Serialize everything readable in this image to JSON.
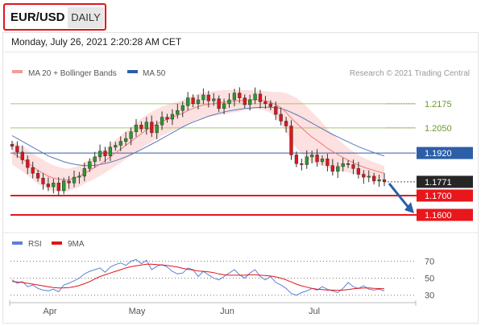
{
  "header": {
    "pair": "EUR/USD",
    "period": "DAILY"
  },
  "timestamp": "Monday, July 26, 2021 2:20:28 AM CET",
  "legend": {
    "ma20": "MA 20 + Bollinger Bands",
    "ma50": "MA 50",
    "credit": "Research © 2021 Trading Central",
    "rsi": "RSI",
    "rsi_ma": "9MA"
  },
  "colors": {
    "candle_up": "#2b9a2b",
    "candle_down": "#e0151b",
    "bollinger_fill": "#fde0e0",
    "ma20": "#f07a7a",
    "ma50": "#5878b4",
    "resistance": "#a3c86a",
    "current": "#2c5fa8",
    "support": "#e8171c",
    "last_price": "#262626",
    "rsi": "#5b7fd6",
    "rsi_ma": "#e0151b",
    "arrow": "#2c5fa8"
  },
  "chart_data": {
    "type": "candlestick",
    "title": "EUR/USD Daily",
    "x_ticks": [
      "Apr",
      "May",
      "Jun",
      "Jul"
    ],
    "price_levels": [
      {
        "label": "1.2175",
        "value": 1.2175,
        "kind": "resistance"
      },
      {
        "label": "1.2050",
        "value": 1.205,
        "kind": "resistance"
      },
      {
        "label": "1.1920",
        "value": 1.192,
        "kind": "pivot"
      },
      {
        "label": "1.1771",
        "value": 1.1771,
        "kind": "last"
      },
      {
        "label": "1.1700",
        "value": 1.17,
        "kind": "support"
      },
      {
        "label": "1.1600",
        "value": 1.16,
        "kind": "support"
      }
    ],
    "y_range": [
      1.1525,
      1.2295
    ],
    "forecast_arrow": {
      "from": 1.1771,
      "to": 1.16
    },
    "closes": [
      1.1955,
      1.1925,
      1.1885,
      1.1845,
      1.1815,
      1.179,
      1.176,
      1.1745,
      1.1765,
      1.1725,
      1.1775,
      1.1765,
      1.1795,
      1.18,
      1.184,
      1.1875,
      1.19,
      1.193,
      1.1905,
      1.195,
      1.196,
      1.198,
      1.1995,
      1.203,
      1.2065,
      1.2045,
      1.208,
      1.2025,
      1.2065,
      1.2105,
      1.2095,
      1.212,
      1.214,
      1.2165,
      1.2205,
      1.2175,
      1.2195,
      1.222,
      1.219,
      1.22,
      1.215,
      1.2175,
      1.2195,
      1.223,
      1.2205,
      1.217,
      1.2195,
      1.2225,
      1.2185,
      1.2175,
      1.216,
      1.212,
      1.2085,
      1.206,
      1.191,
      1.1865,
      1.186,
      1.19,
      1.191,
      1.1875,
      1.189,
      1.1855,
      1.1825,
      1.185,
      1.1865,
      1.186,
      1.184,
      1.181,
      1.1795,
      1.18,
      1.1775,
      1.1782,
      1.1771
    ],
    "ma20": [
      1.192,
      1.1905,
      1.189,
      1.187,
      1.185,
      1.183,
      1.1815,
      1.18,
      1.179,
      1.1785,
      1.178,
      1.1782,
      1.179,
      1.18,
      1.1815,
      1.183,
      1.1845,
      1.1862,
      1.188,
      1.19,
      1.192,
      1.194,
      1.196,
      1.198,
      1.2,
      1.202,
      1.204,
      1.2055,
      1.207,
      1.2085,
      1.2095,
      1.2105,
      1.2115,
      1.2125,
      1.214,
      1.215,
      1.216,
      1.2168,
      1.2172,
      1.2176,
      1.218,
      1.2183,
      1.2186,
      1.2189,
      1.2191,
      1.2193,
      1.2195,
      1.2196,
      1.2194,
      1.219,
      1.2182,
      1.217,
      1.2155,
      1.213,
      1.21,
      1.2075,
      1.205,
      1.2025,
      1.2003,
      1.1985,
      1.1965,
      1.1945,
      1.1928,
      1.1912,
      1.1897,
      1.1883,
      1.187,
      1.1858,
      1.1847,
      1.1838,
      1.183,
      1.1822,
      1.1815
    ],
    "ma50": [
      1.201,
      1.1995,
      1.198,
      1.1965,
      1.195,
      1.1935,
      1.192,
      1.1905,
      1.1895,
      1.1885,
      1.1875,
      1.1868,
      1.1862,
      1.1858,
      1.1855,
      1.1855,
      1.1857,
      1.186,
      1.1866,
      1.1873,
      1.188,
      1.189,
      1.19,
      1.1912,
      1.1925,
      1.1938,
      1.1952,
      1.1966,
      1.198,
      1.1995,
      1.201,
      1.2025,
      1.204,
      1.2055,
      1.2068,
      1.208,
      1.209,
      1.21,
      1.211,
      1.2118,
      1.2125,
      1.2132,
      1.2138,
      1.2142,
      1.2146,
      1.215,
      1.2152,
      1.2155,
      1.2156,
      1.2157,
      1.2157,
      1.2155,
      1.215,
      1.2142,
      1.213,
      1.2118,
      1.2105,
      1.209,
      1.2075,
      1.206,
      1.2045,
      1.203,
      1.2016,
      1.2003,
      1.199,
      1.1978,
      1.1965,
      1.1953,
      1.1942,
      1.1932,
      1.1922,
      1.1913,
      1.1905
    ],
    "bb_width": [
      0.006,
      0.0062,
      0.0064,
      0.0066,
      0.0068,
      0.007,
      0.007,
      0.0069,
      0.0067,
      0.0064,
      0.006,
      0.0058,
      0.0056,
      0.0055,
      0.0055,
      0.0056,
      0.0058,
      0.006,
      0.0062,
      0.0065,
      0.0068,
      0.007,
      0.0072,
      0.0074,
      0.0076,
      0.0077,
      0.0078,
      0.0078,
      0.0077,
      0.0076,
      0.0074,
      0.0072,
      0.007,
      0.0068,
      0.0067,
      0.0066,
      0.0065,
      0.0065,
      0.0064,
      0.0064,
      0.0063,
      0.0062,
      0.006,
      0.0058,
      0.0055,
      0.0052,
      0.005,
      0.0048,
      0.0048,
      0.005,
      0.0055,
      0.0065,
      0.008,
      0.01,
      0.0118,
      0.013,
      0.0135,
      0.0135,
      0.013,
      0.0122,
      0.0112,
      0.01,
      0.009,
      0.008,
      0.0072,
      0.0064,
      0.0058,
      0.0052,
      0.0048,
      0.0045,
      0.0042,
      0.004,
      0.0038
    ],
    "rsi": {
      "ticks": [
        70,
        50,
        30
      ],
      "y_range": [
        25,
        78
      ],
      "values": [
        48,
        44,
        46,
        40,
        42,
        38,
        36,
        35,
        37,
        34,
        42,
        44,
        47,
        50,
        55,
        58,
        60,
        62,
        57,
        63,
        66,
        68,
        65,
        70,
        72,
        67,
        71,
        60,
        64,
        66,
        63,
        58,
        55,
        56,
        62,
        60,
        52,
        58,
        54,
        50,
        48,
        52,
        56,
        60,
        54,
        50,
        56,
        60,
        52,
        48,
        52,
        45,
        42,
        38,
        32,
        30,
        33,
        35,
        38,
        36,
        40,
        37,
        35,
        33,
        38,
        45,
        40,
        38,
        41,
        37,
        36,
        37,
        35
      ],
      "ma_values": [
        46,
        45.5,
        45,
        44,
        43,
        42,
        41,
        40,
        39,
        38.5,
        38.6,
        39,
        40,
        41.5,
        43.5,
        46,
        49,
        52,
        54,
        56,
        58,
        60,
        62,
        63.5,
        64.5,
        65.5,
        66.5,
        66.5,
        66,
        65.5,
        65,
        64,
        63,
        61.5,
        60.5,
        59.5,
        58.5,
        58,
        57.5,
        56.5,
        55,
        54,
        53.5,
        53.5,
        53.5,
        53.5,
        54,
        54,
        53.5,
        53,
        52.5,
        51.5,
        50,
        48,
        45.5,
        43,
        41,
        39.5,
        38,
        37,
        36.5,
        36,
        36,
        35.8,
        36,
        36.5,
        37.5,
        38,
        38.5,
        38.5,
        38,
        37.8,
        37.5
      ]
    }
  }
}
